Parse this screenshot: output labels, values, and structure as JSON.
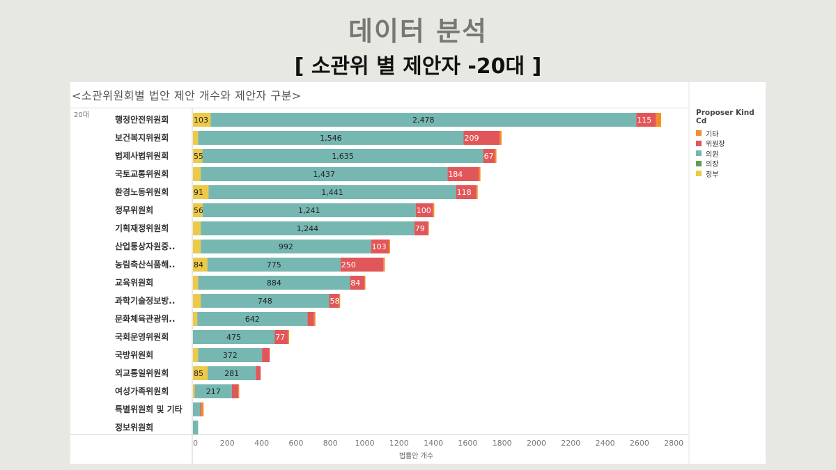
{
  "page": {
    "title": "데이터 분석",
    "subtitle": "[ 소관위 별 제안자 -20대 ]"
  },
  "chart_data": {
    "type": "bar",
    "orientation": "horizontal",
    "stacked": true,
    "title": "<소관위원회별 법안 제안 개수와 제안자 구분>",
    "group_label": "20대",
    "xlabel": "법률안 개수",
    "ylabel": "",
    "xlim": [
      0,
      2850
    ],
    "x_ticks": [
      0,
      200,
      400,
      600,
      800,
      1000,
      1200,
      1400,
      1600,
      1800,
      2000,
      2200,
      2400,
      2600,
      2800
    ],
    "grid": false,
    "legend_position": "right",
    "legend_title": "Proposer Kind Cd",
    "categories": [
      "행정안전위원회",
      "보건복지위원회",
      "법제사법위원회",
      "국토교통위원회",
      "환경노동위원회",
      "정무위원회",
      "기획재정위원회",
      "산업통상자원중..",
      "농림축산식품해..",
      "교육위원회",
      "과학기술정보방..",
      "문화체육관광위..",
      "국회운영위원회",
      "국방위원회",
      "외교통일위원회",
      "여성가족위원회",
      "특별위원회 및 기타",
      "정보위원회"
    ],
    "stack_order": [
      "정부",
      "의원",
      "위원장",
      "기타"
    ],
    "series": [
      {
        "name": "기타",
        "color": "#f28e2b",
        "values": [
          30,
          12,
          10,
          8,
          8,
          8,
          6,
          8,
          8,
          6,
          6,
          8,
          8,
          0,
          0,
          4,
          12,
          0
        ]
      },
      {
        "name": "위원장",
        "color": "#e15759",
        "values": [
          115,
          209,
          67,
          184,
          118,
          100,
          79,
          103,
          250,
          84,
          58,
          38,
          77,
          45,
          28,
          38,
          8,
          0
        ]
      },
      {
        "name": "의원",
        "color": "#76b7b2",
        "values": [
          2478,
          1546,
          1635,
          1437,
          1441,
          1241,
          1244,
          992,
          775,
          884,
          748,
          642,
          475,
          372,
          281,
          217,
          42,
          30
        ]
      },
      {
        "name": "의장",
        "color": "#59a14f",
        "values": [
          0,
          0,
          0,
          0,
          0,
          0,
          0,
          0,
          0,
          0,
          0,
          0,
          0,
          0,
          0,
          0,
          0,
          0
        ]
      },
      {
        "name": "정부",
        "color": "#edc948",
        "values": [
          103,
          30,
          55,
          45,
          91,
          56,
          45,
          45,
          84,
          30,
          45,
          25,
          0,
          30,
          85,
          10,
          0,
          0
        ]
      }
    ],
    "value_labels": {
      "정부": [
        "103",
        "",
        "55",
        "",
        "91",
        "56",
        "",
        "",
        "84",
        "",
        "",
        "",
        "",
        "",
        "85",
        "",
        "",
        ""
      ],
      "의원": [
        "2,478",
        "1,546",
        "1,635",
        "1,437",
        "1,441",
        "1,241",
        "1,244",
        "992",
        "775",
        "884",
        "748",
        "642",
        "475",
        "372",
        "281",
        "217",
        "",
        ""
      ],
      "위원장": [
        "115",
        "209",
        "67",
        "184",
        "118",
        "100",
        "79",
        "103",
        "250",
        "84",
        "58",
        "",
        "77",
        "",
        "",
        "",
        "",
        ""
      ]
    }
  }
}
